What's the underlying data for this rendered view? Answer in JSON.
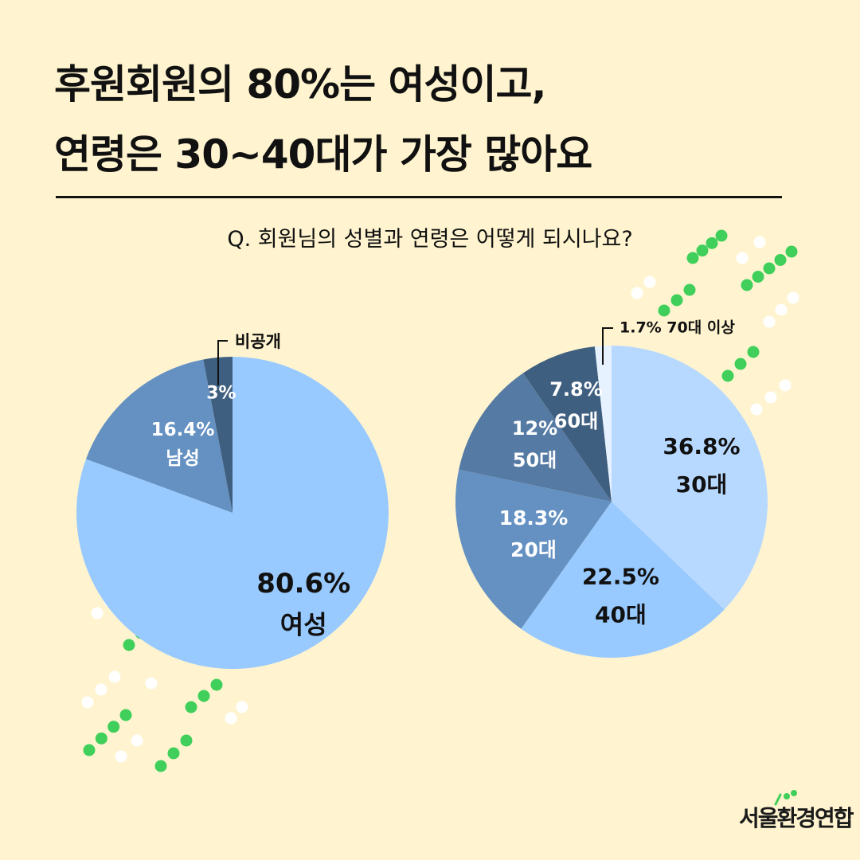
{
  "title": {
    "line1": "후원회원의 80%는 여성이고,",
    "line2": "연령은 30~40대가 가장 많아요"
  },
  "question": "Q. 회원님의 성별과 연령은 어떻게 되시나요?",
  "brand": "서울환경연합",
  "colors": {
    "background": "#fff4cf",
    "dot_green": "#3fcf5a",
    "dot_white": "#ffffff"
  },
  "chart_data": [
    {
      "type": "pie",
      "title": "",
      "slices": [
        {
          "label": "여성",
          "value": 80.6,
          "value_label": "80.6%",
          "color": "#99caff"
        },
        {
          "label": "남성",
          "value": 16.4,
          "value_label": "16.4%",
          "color": "#6491c2"
        },
        {
          "label": "비공개",
          "value": 3,
          "value_label": "3%",
          "color": "#3f5f80"
        }
      ]
    },
    {
      "type": "pie",
      "title": "",
      "slices": [
        {
          "label": "30대",
          "value": 36.8,
          "value_label": "36.8%",
          "color": "#b8d9ff"
        },
        {
          "label": "40대",
          "value": 22.5,
          "value_label": "22.5%",
          "color": "#99caff"
        },
        {
          "label": "20대",
          "value": 18.3,
          "value_label": "18.3%",
          "color": "#6491c2"
        },
        {
          "label": "50대",
          "value": 12,
          "value_label": "12%",
          "color": "#557aa3"
        },
        {
          "label": "60대",
          "value": 7.8,
          "value_label": "7.8%",
          "color": "#3f5f80"
        },
        {
          "label": "70대 이상",
          "value": 1.7,
          "value_label": "1.7%",
          "color": "#e6f2ff"
        }
      ]
    }
  ]
}
